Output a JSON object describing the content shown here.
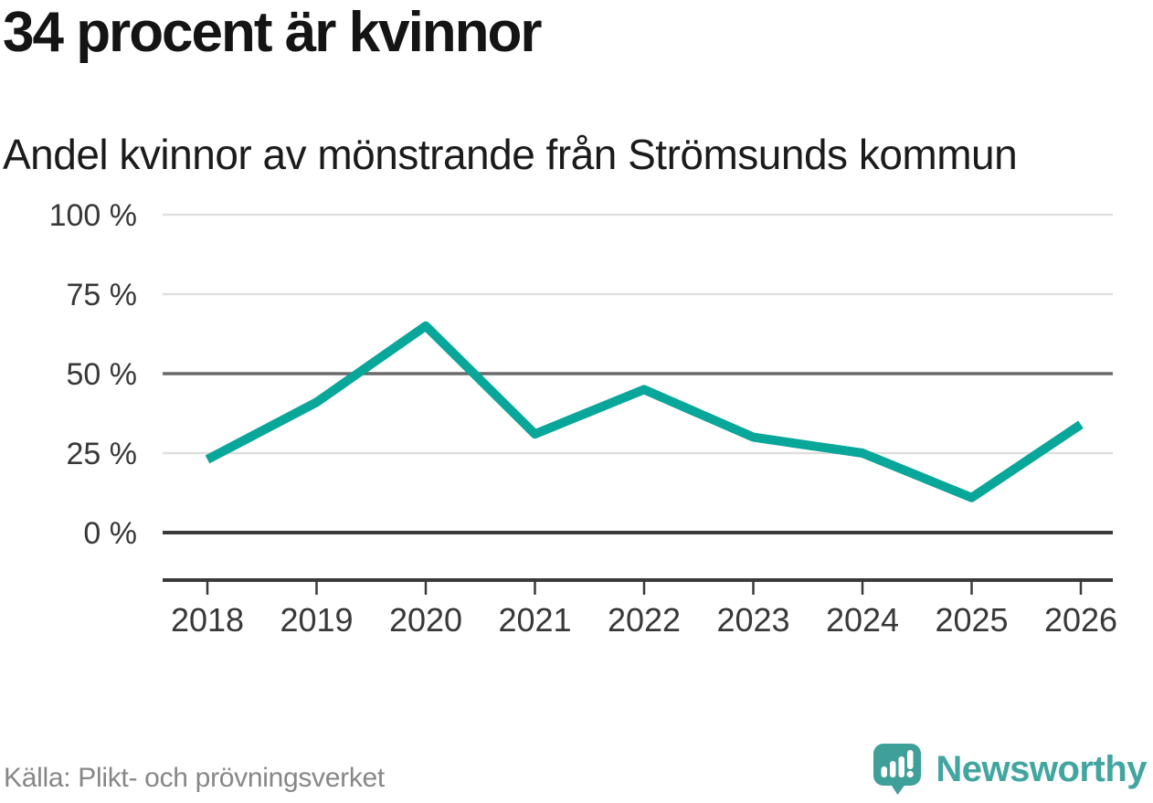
{
  "header": {
    "title": "34 procent är kvinnor",
    "subtitle": "Andel kvinnor av mönstrande från Strömsunds kommun"
  },
  "chart_data": {
    "type": "line",
    "title": "34 procent är kvinnor",
    "subtitle": "Andel kvinnor av mönstrande från Strömsunds kommun",
    "categories": [
      "2018",
      "2019",
      "2020",
      "2021",
      "2022",
      "2023",
      "2024",
      "2025",
      "2026"
    ],
    "values": [
      23,
      41,
      65,
      31,
      45,
      30,
      25,
      11,
      34
    ],
    "series_name": "Andel kvinnor av mönstrande",
    "unit": "%",
    "xlabel": "",
    "ylabel": "",
    "ylim": [
      0,
      100
    ],
    "yticks": [
      0,
      25,
      50,
      75,
      100
    ],
    "ytick_suffix": " %",
    "grid": true,
    "legend": "none",
    "baseline_gridline": 0,
    "highlighted_gridline": 50,
    "line_color": "#09a69a"
  },
  "footer": {
    "source": "Källa: Plikt- och prövningsverket",
    "brand": "Newsworthy"
  },
  "colors": {
    "accent_line": "#09a69a",
    "brand_icon": "#3f9f99",
    "brand_text": "#42a5a0",
    "title_text": "#141414",
    "axis_text": "#383838",
    "muted_text": "#878787",
    "grid_light": "#dfdfdf",
    "grid_mid": "#6a6a6a",
    "grid_dark": "#3a3a3a"
  }
}
